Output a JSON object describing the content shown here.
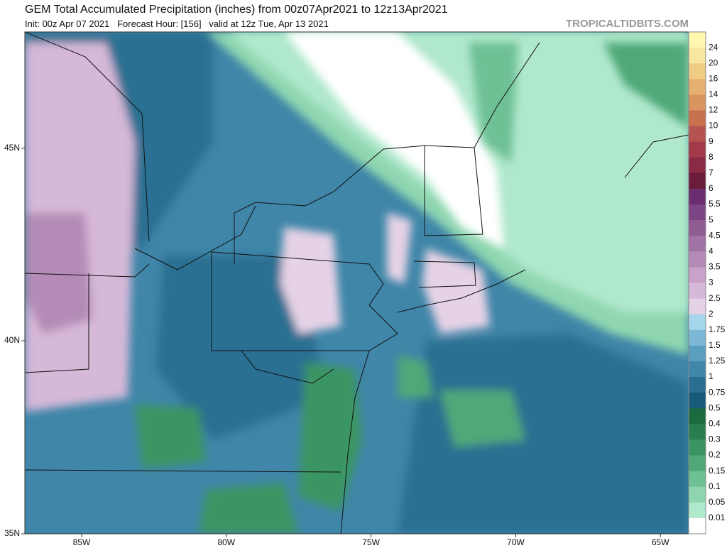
{
  "header": {
    "title": "GEM Total Accumulated Precipitation (inches) from 00z07Apr2021 to 12z13Apr2021",
    "subtitle": "Init: 00z Apr 07 2021   Forecast Hour: [156]   valid at 12z Tue, Apr 13 2021",
    "site": "TROPICALTIDBITS.COM"
  },
  "colorbar": {
    "labels": [
      "24",
      "20",
      "16",
      "14",
      "12",
      "10",
      "9",
      "8",
      "7",
      "6",
      "5.5",
      "5",
      "4.5",
      "4",
      "3.5",
      "3",
      "2.5",
      "2",
      "1.75",
      "1.5",
      "1.25",
      "1",
      "0.75",
      "0.5",
      "0.4",
      "0.3",
      "0.2",
      "0.15",
      "0.1",
      "0.05",
      "0.01"
    ]
  },
  "axes": {
    "lat": [
      "45N",
      "40N",
      "35N"
    ],
    "lon": [
      "85W",
      "80W",
      "75W",
      "70W",
      "65W"
    ]
  }
}
